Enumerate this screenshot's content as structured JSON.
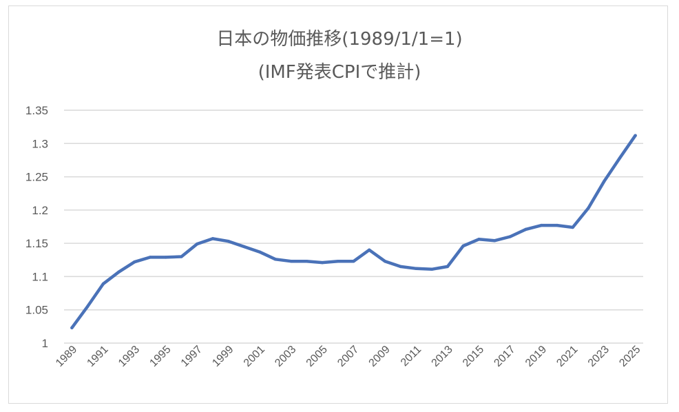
{
  "chart_data": {
    "type": "line",
    "title": "日本の物価推移(1989/1/1=1)",
    "subtitle": "(IMF発表CPIで推計)",
    "x": [
      1989,
      1990,
      1991,
      1992,
      1993,
      1994,
      1995,
      1996,
      1997,
      1998,
      1999,
      2000,
      2001,
      2002,
      2003,
      2004,
      2005,
      2006,
      2007,
      2008,
      2009,
      2010,
      2011,
      2012,
      2013,
      2014,
      2015,
      2016,
      2017,
      2018,
      2019,
      2020,
      2021,
      2022,
      2023,
      2024,
      2025
    ],
    "x_tick_labels": [
      "1989",
      "1991",
      "1993",
      "1995",
      "1997",
      "1999",
      "2001",
      "2003",
      "2005",
      "2007",
      "2009",
      "2011",
      "2013",
      "2015",
      "2017",
      "2019",
      "2021",
      "2023",
      "2025"
    ],
    "y_tick_labels": [
      "1",
      "1.05",
      "1.1",
      "1.15",
      "1.2",
      "1.25",
      "1.3",
      "1.35"
    ],
    "series": [
      {
        "values": [
          1.023,
          1.055,
          1.089,
          1.107,
          1.122,
          1.129,
          1.129,
          1.13,
          1.149,
          1.157,
          1.153,
          1.145,
          1.137,
          1.126,
          1.123,
          1.123,
          1.121,
          1.123,
          1.123,
          1.14,
          1.123,
          1.115,
          1.112,
          1.111,
          1.115,
          1.146,
          1.156,
          1.154,
          1.16,
          1.171,
          1.177,
          1.177,
          1.174,
          1.203,
          1.243,
          1.278,
          1.312
        ],
        "color": "#4a72b8"
      }
    ],
    "ylim": [
      1,
      1.35
    ],
    "xlabel": "",
    "ylabel": "",
    "grid": true,
    "legend": "none"
  }
}
